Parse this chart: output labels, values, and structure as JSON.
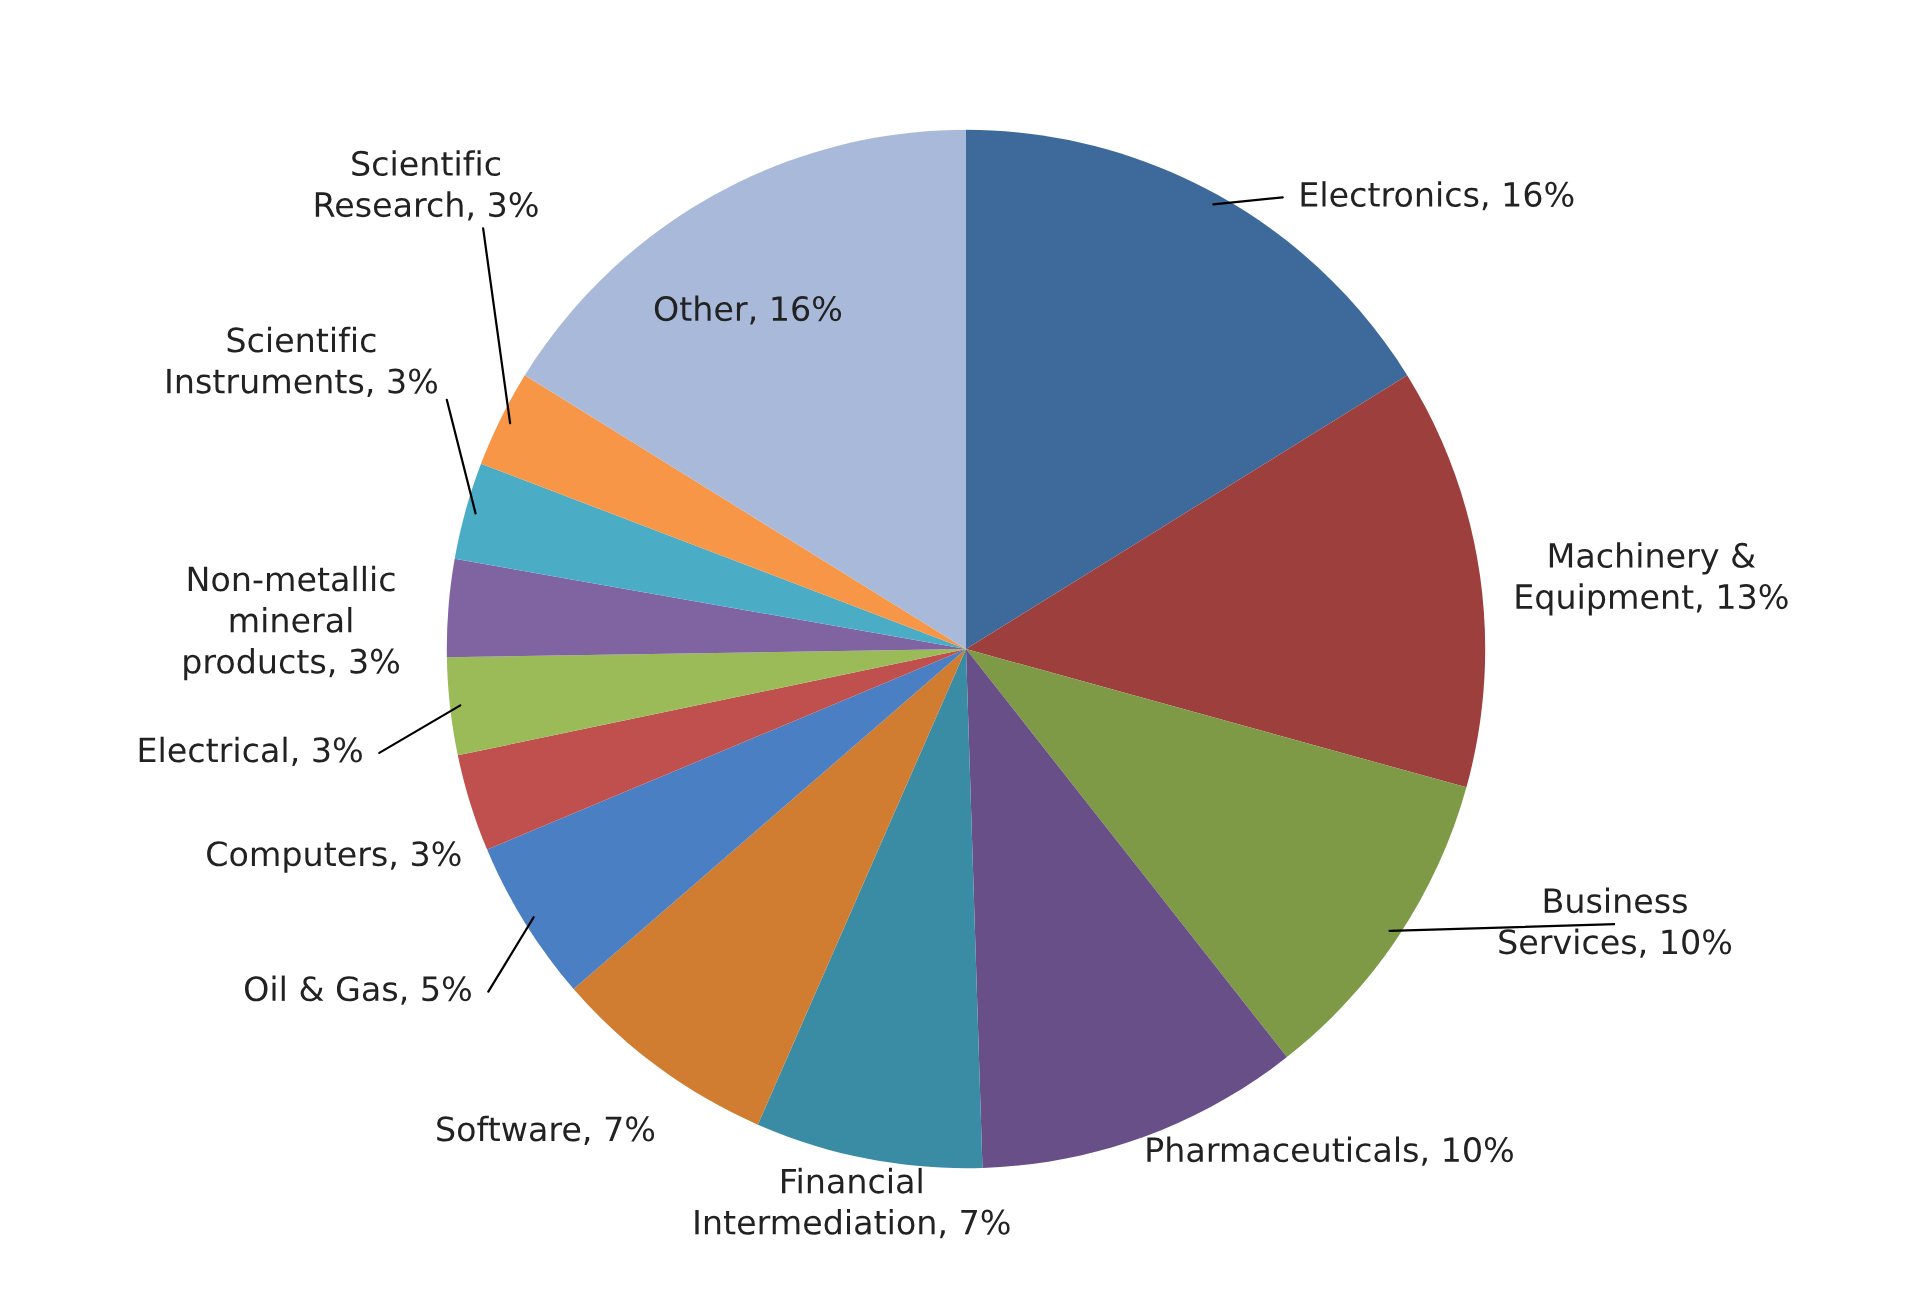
{
  "chart_data": {
    "type": "pie",
    "categories": [
      "Electronics",
      "Machinery &\nEquipment",
      "Business\nServices",
      "Pharmaceuticals",
      "Financial\nIntermediation",
      "Software",
      "Oil & Gas",
      "Computers",
      "Electrical",
      "Non-metallic\nmineral\nproducts",
      "Scientific\nInstruments",
      "Scientific\nResearch",
      "Other"
    ],
    "values": [
      16,
      13,
      10,
      10,
      7,
      7,
      5,
      3,
      3,
      3,
      3,
      3,
      16
    ],
    "value_labels": [
      "16%",
      "13%",
      "10%",
      "10%",
      "7%",
      "7%",
      "5%",
      "3%",
      "3%",
      "3%",
      "3%",
      "3%",
      "16%"
    ],
    "colors": [
      "#3e6a9b",
      "#9d3f3c",
      "#7e9a47",
      "#684f88",
      "#3a8ca4",
      "#d07c31",
      "#4a7fc3",
      "#c0504d",
      "#9bbb59",
      "#8064a2",
      "#4bacc6",
      "#f79646",
      "#a9b9d9"
    ],
    "legend": false
  }
}
